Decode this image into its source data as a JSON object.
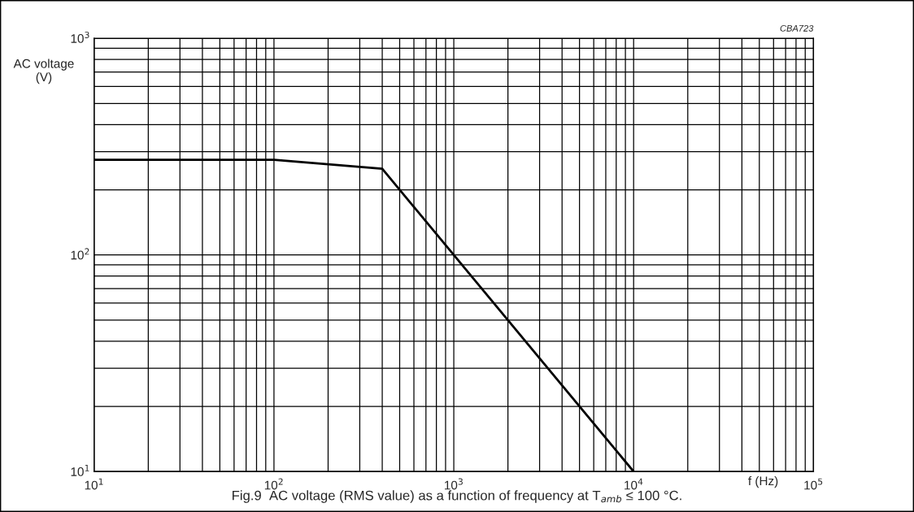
{
  "chart_data": {
    "type": "line",
    "xlabel": "f (Hz)",
    "ylabel": "AC voltage\n(V)",
    "x": [
      10,
      100,
      400,
      10000
    ],
    "series": [
      {
        "color": "#000000",
        "values": [
          275,
          275,
          250,
          10
        ]
      }
    ],
    "log": "xy",
    "grid": true,
    "xlim": [
      10,
      100000
    ],
    "ylim": [
      10,
      1000
    ],
    "xticks": [
      {
        "value": 10,
        "label": "10$^{1}$"
      },
      {
        "value": 100,
        "label": "10$^{2}$"
      },
      {
        "value": 1000,
        "label": "10$^{3}$"
      },
      {
        "value": 10000,
        "label": "10$^{4}$"
      },
      {
        "value": 100000,
        "label": "10$^{5}$"
      }
    ],
    "yticks": [
      {
        "value": 10,
        "label": "10$^{1}$"
      },
      {
        "value": 100,
        "label": "10$^{2}$"
      },
      {
        "value": 1000,
        "label": "10$^{3}$"
      }
    ],
    "annotations": [
      "CBA723",
      "Fig.9  AC voltage (RMS value) as a function of frequency at T$_{amb}$ ≤ 100 °C."
    ]
  }
}
